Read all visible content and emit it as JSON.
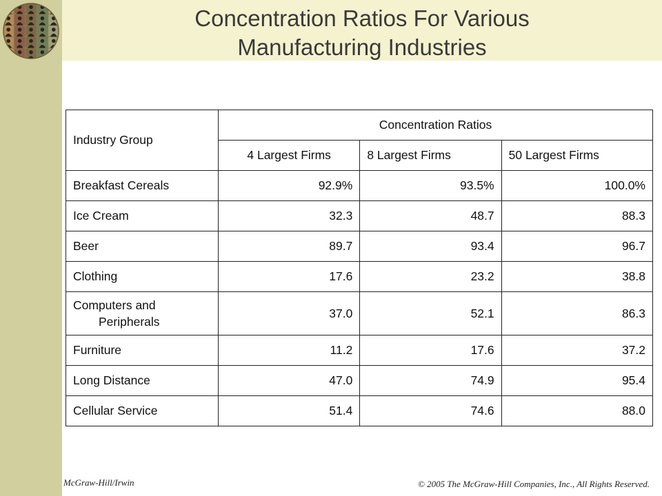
{
  "title": {
    "line1": "Concentration Ratios For Various",
    "line2": "Manufacturing Industries"
  },
  "table": {
    "header": {
      "industry_group": "Industry Group",
      "concentration_ratios": "Concentration Ratios",
      "col4": "4 Largest Firms",
      "col8": "8 Largest Firms",
      "col50": "50 Largest Firms"
    },
    "rows": [
      {
        "industry": "Breakfast Cereals",
        "f4": "92.9%",
        "f8": "93.5%",
        "f50": "100.0%"
      },
      {
        "industry": "Ice Cream",
        "f4": "32.3",
        "f8": "48.7",
        "f50": "88.3"
      },
      {
        "industry": "Beer",
        "f4": "89.7",
        "f8": "93.4",
        "f50": "96.7"
      },
      {
        "industry": "Clothing",
        "f4": "17.6",
        "f8": "23.2",
        "f50": "38.8"
      },
      {
        "industry_line1": "Computers and",
        "industry_line2": "Peripherals",
        "f4": "37.0",
        "f8": "52.1",
        "f50": "86.3"
      },
      {
        "industry": "Furniture",
        "f4": "11.2",
        "f8": "17.6",
        "f50": "37.2"
      },
      {
        "industry": "Long Distance",
        "f4": "47.0",
        "f8": "74.9",
        "f50": "95.4"
      },
      {
        "industry": "Cellular Service",
        "f4": "51.4",
        "f8": "74.6",
        "f50": "88.0"
      }
    ]
  },
  "footer": {
    "publisher": "McGraw-Hill/Irwin",
    "copyright": "© 2005 The McGraw-Hill  Companies, Inc., All Rights Reserved."
  },
  "colors": {
    "left_band": "#d1cf9d",
    "title_band": "#f5f2cf"
  },
  "icons": {
    "logo": "people-grid-globe-logo"
  }
}
